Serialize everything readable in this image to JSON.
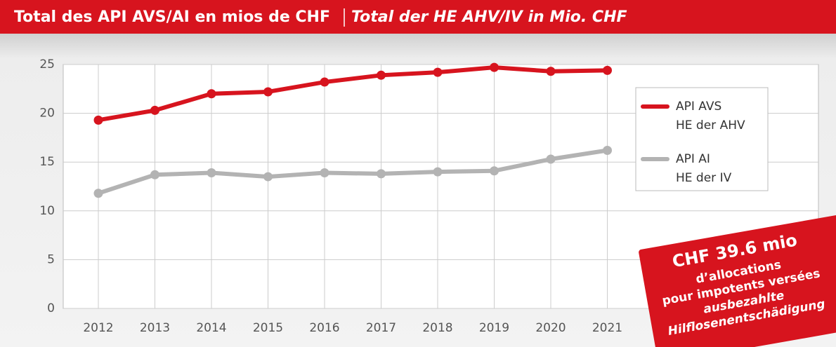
{
  "chart_data": {
    "type": "line",
    "title": "Total des API AVS/AI en mios de CHF",
    "subtitle": "Total der HE AHV/IV in Mio. CHF",
    "categories": [
      "2012",
      "2013",
      "2014",
      "2015",
      "2016",
      "2017",
      "2018",
      "2019",
      "2020",
      "2021"
    ],
    "series": [
      {
        "name": "API AVS",
        "name_de": "HE der AHV",
        "color": "#d7141e",
        "values": [
          19.3,
          20.3,
          22.0,
          22.2,
          23.2,
          23.9,
          24.2,
          24.7,
          24.3,
          24.4
        ]
      },
      {
        "name": "API AI",
        "name_de": "HE der IV",
        "color": "#b3b3b3",
        "values": [
          11.8,
          13.7,
          13.9,
          13.5,
          13.9,
          13.8,
          14.0,
          14.1,
          15.3,
          16.2
        ]
      }
    ],
    "ylim": [
      0,
      25
    ],
    "yticks": [
      0,
      5,
      10,
      15,
      20,
      25
    ],
    "grid": true,
    "legend": "upper right",
    "annotation": {
      "headline": "CHF 39.6 mio",
      "lines": [
        "d’allocations",
        "pour impotents versées"
      ],
      "lines_de": [
        "ausbezahlte",
        "Hilflosenentschädigung"
      ]
    }
  }
}
